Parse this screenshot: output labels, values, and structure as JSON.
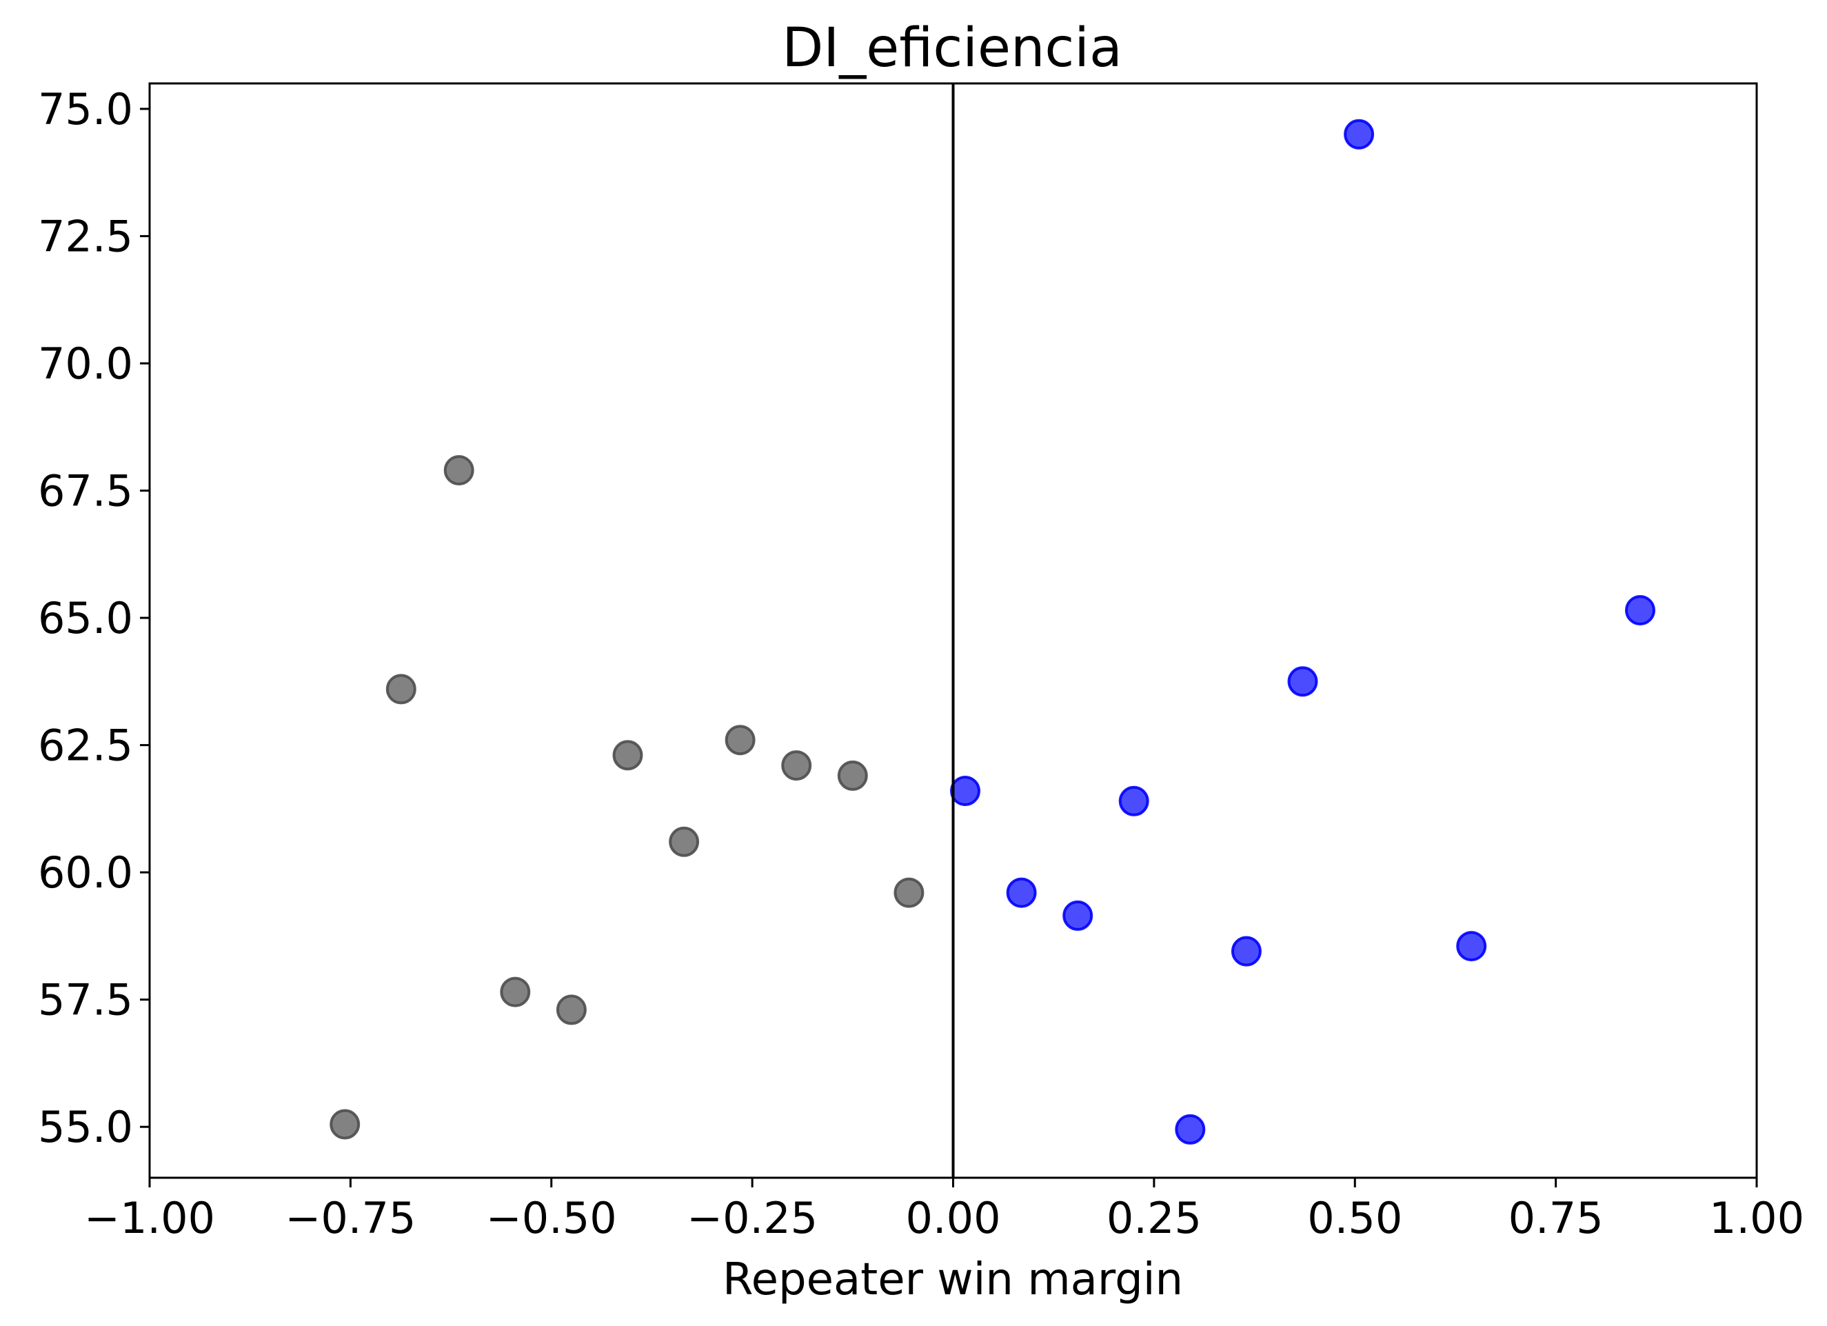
{
  "chart_data": {
    "type": "scatter",
    "title": "DI_eficiencia",
    "xlabel": "Repeater win margin",
    "ylabel": "",
    "xlim": [
      -1.0,
      1.0
    ],
    "ylim": [
      54.0,
      75.5
    ],
    "xticks": [
      -1.0,
      -0.75,
      -0.5,
      -0.25,
      0.0,
      0.25,
      0.5,
      0.75,
      1.0
    ],
    "xtick_labels": [
      "−1.00",
      "−0.75",
      "−0.50",
      "−0.25",
      "0.00",
      "0.25",
      "0.50",
      "0.75",
      "1.00"
    ],
    "yticks": [
      55.0,
      57.5,
      60.0,
      62.5,
      65.0,
      67.5,
      70.0,
      72.5,
      75.0
    ],
    "ytick_labels": [
      "55.0",
      "57.5",
      "60.0",
      "62.5",
      "65.0",
      "67.5",
      "70.0",
      "72.5",
      "75.0"
    ],
    "reference_line": {
      "axis": "x",
      "value": 0.0,
      "color": "#000000"
    },
    "grid": false,
    "series": [
      {
        "color": "#4d4d4d",
        "points": [
          {
            "x": -0.757,
            "y": 55.05
          },
          {
            "x": -0.687,
            "y": 63.6
          },
          {
            "x": -0.615,
            "y": 67.9
          },
          {
            "x": -0.545,
            "y": 57.65
          },
          {
            "x": -0.475,
            "y": 57.3
          },
          {
            "x": -0.405,
            "y": 62.3
          },
          {
            "x": -0.335,
            "y": 60.6
          },
          {
            "x": -0.265,
            "y": 62.6
          },
          {
            "x": -0.195,
            "y": 62.1
          },
          {
            "x": -0.125,
            "y": 61.9
          },
          {
            "x": -0.055,
            "y": 59.6
          }
        ]
      },
      {
        "color": "#0000ff",
        "points": [
          {
            "x": 0.015,
            "y": 61.6
          },
          {
            "x": 0.085,
            "y": 59.6
          },
          {
            "x": 0.155,
            "y": 59.15
          },
          {
            "x": 0.225,
            "y": 61.4
          },
          {
            "x": 0.295,
            "y": 54.95
          },
          {
            "x": 0.365,
            "y": 58.45
          },
          {
            "x": 0.435,
            "y": 63.75
          },
          {
            "x": 0.505,
            "y": 74.5
          },
          {
            "x": 0.645,
            "y": 58.55
          },
          {
            "x": 0.855,
            "y": 65.15
          }
        ]
      }
    ]
  }
}
